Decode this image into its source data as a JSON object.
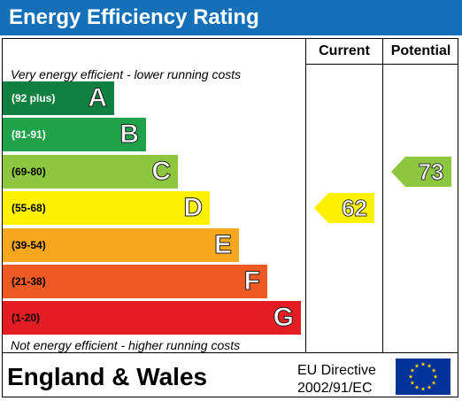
{
  "title": "Energy Efficiency Rating",
  "columns": {
    "current": "Current",
    "potential": "Potential"
  },
  "top_note": "Very energy efficient - lower running costs",
  "bottom_note": "Not energy efficient - higher running costs",
  "footer": {
    "country": "England & Wales",
    "directive_line1": "EU Directive",
    "directive_line2": "2002/91/EC",
    "flag_icon": "eu-flag-icon"
  },
  "chart_data": {
    "type": "bar",
    "categories": [
      "A",
      "B",
      "C",
      "D",
      "E",
      "F",
      "G"
    ],
    "ranges": [
      "(92 plus)",
      "(81-91)",
      "(69-80)",
      "(55-68)",
      "(39-54)",
      "(21-38)",
      "(1-20)"
    ],
    "range_min": [
      92,
      81,
      69,
      55,
      39,
      21,
      1
    ],
    "range_max": [
      100,
      91,
      80,
      68,
      54,
      38,
      20
    ],
    "colors": [
      "#0f8040",
      "#1fa24a",
      "#8dc63f",
      "#fff200",
      "#f6a71d",
      "#ef5a24",
      "#e31d23"
    ],
    "range_text_colors": [
      "#ffffff",
      "#ffffff",
      "#000000",
      "#000000",
      "#000000",
      "#000000",
      "#000000"
    ],
    "current": {
      "value": 62,
      "band": "D",
      "color": "#fff200"
    },
    "potential": {
      "value": 73,
      "band": "C",
      "color": "#8dc63f"
    }
  }
}
